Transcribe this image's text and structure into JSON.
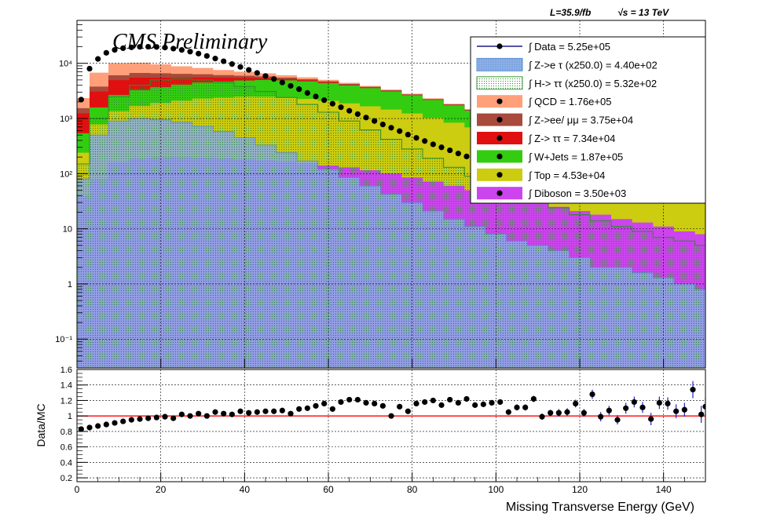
{
  "header": {
    "lumi_text": "L=35.9/fb",
    "energy_text": "√s = 13 TeV",
    "cms_label": "CMS Preliminary"
  },
  "legend": [
    {
      "text": "∫ Data = 5.25e+05",
      "style": "marker",
      "color": "#000000"
    },
    {
      "text": "∫ Z->e τ (x250.0) = 4.40e+02",
      "style": "hatch",
      "color": "#5b8fd6"
    },
    {
      "text": "∫ H-> ττ (x250.0) = 5.32e+02",
      "style": "hatch",
      "color": "#3a9a3a"
    },
    {
      "text": "∫ QCD = 1.76e+05",
      "style": "fill",
      "color": "#ffa07a"
    },
    {
      "text": "∫ Z->ee/ μμ = 3.75e+04",
      "style": "fill",
      "color": "#a84a3c"
    },
    {
      "text": "∫ Z-> ττ = 7.34e+04",
      "style": "fill",
      "color": "#e01010"
    },
    {
      "text": "∫ W+Jets = 1.87e+05",
      "style": "fill",
      "color": "#33cc11"
    },
    {
      "text": "∫ Top = 4.53e+04",
      "style": "fill",
      "color": "#cccc11"
    },
    {
      "text": "∫ Diboson = 3.50e+03",
      "style": "fill",
      "color": "#cc44ee"
    }
  ],
  "colors": {
    "data": "#000000",
    "qcd": "#ffa07a",
    "zee": "#a84a3c",
    "ztt": "#e01010",
    "wjets": "#33cc11",
    "top": "#cccc11",
    "diboson": "#cc44ee",
    "signal_ze": "#5b8fd6",
    "signal_htt": "#2e8b2e",
    "ratio_line": "#ff0000",
    "error_bar": "#2020cc"
  },
  "chart_data": [
    {
      "type": "area",
      "subtype": "stacked histogram",
      "yscale": "log",
      "xlim": [
        0,
        150
      ],
      "ylim": [
        0.03,
        60000
      ],
      "ytick_labels": [
        "10⁻¹",
        "1",
        "10",
        "10²",
        "10³",
        "10⁴"
      ],
      "ytick_values": [
        0.1,
        1,
        10,
        100,
        1000,
        10000
      ],
      "x": [
        1,
        5,
        10,
        15,
        20,
        25,
        30,
        35,
        40,
        45,
        50,
        55,
        60,
        65,
        70,
        75,
        80,
        85,
        90,
        95,
        100,
        105,
        110,
        115,
        120,
        125,
        130,
        135,
        140,
        145,
        150
      ],
      "stack": [
        {
          "name": "Diboson",
          "values": [
            40,
            80,
            160,
            190,
            200,
            200,
            195,
            190,
            180,
            175,
            165,
            155,
            140,
            130,
            115,
            100,
            85,
            72,
            60,
            50,
            42,
            35,
            30,
            25,
            21,
            18,
            15,
            13,
            11,
            9,
            8
          ]
        },
        {
          "name": "Top",
          "values": [
            200,
            700,
            1200,
            1500,
            1700,
            1900,
            2100,
            2200,
            2300,
            2300,
            2250,
            2100,
            1950,
            1750,
            1550,
            1350,
            1150,
            950,
            780,
            640,
            510,
            410,
            330,
            260,
            200,
            160,
            120,
            95,
            72,
            56,
            44
          ]
        },
        {
          "name": "W+Jets",
          "values": [
            300,
            800,
            1300,
            1600,
            1800,
            2000,
            2200,
            2300,
            2400,
            2500,
            2500,
            2450,
            2300,
            2100,
            1900,
            1650,
            1400,
            1150,
            900,
            700,
            520,
            390,
            290,
            210,
            150,
            110,
            80,
            58,
            42,
            30,
            22
          ]
        },
        {
          "name": "Z-> ττ",
          "values": [
            700,
            1500,
            2300,
            2200,
            1800,
            1400,
            1050,
            780,
            560,
            400,
            280,
            200,
            140,
            100,
            72,
            52,
            38,
            28,
            20,
            15,
            11,
            8,
            6,
            5,
            4,
            3,
            2,
            2,
            1,
            1,
            1
          ]
        },
        {
          "name": "Z->ee/ μμ",
          "values": [
            300,
            700,
            1100,
            1200,
            1100,
            950,
            800,
            650,
            520,
            410,
            320,
            250,
            190,
            150,
            115,
            90,
            70,
            54,
            42,
            33,
            26,
            20,
            16,
            13,
            10,
            8,
            6,
            5,
            4,
            3,
            3
          ]
        },
        {
          "name": "QCD",
          "values": [
            800,
            3000,
            4000,
            3600,
            3000,
            2400,
            1900,
            1450,
            1100,
            800,
            580,
            420,
            300,
            210,
            150,
            110,
            80,
            60,
            44,
            33,
            25,
            19,
            15,
            12,
            9,
            7,
            6,
            5,
            4,
            3,
            3
          ]
        }
      ],
      "signals": [
        {
          "name": "Z->e τ (x250.0)",
          "values": [
            80,
            500,
            900,
            1000,
            950,
            850,
            720,
            580,
            450,
            330,
            240,
            170,
            120,
            85,
            60,
            42,
            30,
            21,
            15,
            11,
            8,
            6,
            5,
            4,
            3,
            2,
            2,
            1.6,
            1.3,
            1,
            0.8
          ]
        },
        {
          "name": "H-> ττ (x250.0)",
          "values": [
            150,
            1000,
            2500,
            4000,
            5000,
            5200,
            5000,
            4500,
            3800,
            3100,
            2400,
            1800,
            1300,
            900,
            620,
            420,
            280,
            190,
            130,
            90,
            62,
            44,
            32,
            24,
            18,
            14,
            11,
            9,
            7,
            6,
            5
          ]
        }
      ],
      "data_points": {
        "x": [
          1,
          3,
          5,
          7,
          9,
          11,
          13,
          15,
          17,
          19,
          21,
          23,
          25,
          27,
          29,
          31,
          33,
          35,
          37,
          39,
          41,
          43,
          45,
          47,
          49,
          51,
          53,
          55,
          57,
          59,
          61,
          63,
          65,
          67,
          69,
          71,
          73,
          75,
          77,
          79,
          81,
          83,
          85,
          87,
          89,
          91,
          93,
          95,
          97,
          99,
          101,
          103,
          105,
          107,
          109
        ],
        "y": [
          2200,
          8000,
          12000,
          15500,
          17500,
          18800,
          19500,
          19900,
          20000,
          19800,
          19300,
          18500,
          17500,
          16300,
          15000,
          13600,
          12200,
          10900,
          9700,
          8600,
          7600,
          6700,
          5900,
          5200,
          4500,
          3900,
          3400,
          2900,
          2500,
          2150,
          1850,
          1600,
          1380,
          1200,
          1040,
          900,
          780,
          680,
          590,
          510,
          445,
          390,
          340,
          300,
          265,
          232,
          205,
          182,
          162,
          145,
          130,
          117,
          105,
          95,
          86
        ]
      },
      "xlabel": "",
      "ylabel": ""
    },
    {
      "type": "scatter",
      "ylabel": "Data/MC",
      "xlabel": "Missing Transverse Energy (GeV)",
      "xlim": [
        0,
        150
      ],
      "ylim": [
        0.15,
        1.6
      ],
      "ytick_labels": [
        "0.2",
        "0.4",
        "0.6",
        "0.8",
        "1",
        "1.2",
        "1.4",
        "1.6"
      ],
      "ytick_values": [
        0.2,
        0.4,
        0.6,
        0.8,
        1.0,
        1.2,
        1.4,
        1.6
      ],
      "xtick_labels": [
        "0",
        "20",
        "40",
        "60",
        "80",
        "100",
        "120",
        "140"
      ],
      "xtick_values": [
        0,
        20,
        40,
        60,
        80,
        100,
        120,
        140
      ],
      "reference_line": 1.0,
      "points": [
        {
          "x": 1,
          "y": 0.83,
          "err": 0.01
        },
        {
          "x": 3,
          "y": 0.85,
          "err": 0.01
        },
        {
          "x": 5,
          "y": 0.87,
          "err": 0.01
        },
        {
          "x": 7,
          "y": 0.89,
          "err": 0.01
        },
        {
          "x": 9,
          "y": 0.91,
          "err": 0.01
        },
        {
          "x": 11,
          "y": 0.93,
          "err": 0.01
        },
        {
          "x": 13,
          "y": 0.95,
          "err": 0.01
        },
        {
          "x": 15,
          "y": 0.96,
          "err": 0.01
        },
        {
          "x": 17,
          "y": 0.97,
          "err": 0.01
        },
        {
          "x": 19,
          "y": 0.98,
          "err": 0.01
        },
        {
          "x": 21,
          "y": 0.99,
          "err": 0.01
        },
        {
          "x": 23,
          "y": 0.97,
          "err": 0.01
        },
        {
          "x": 25,
          "y": 1.02,
          "err": 0.01
        },
        {
          "x": 27,
          "y": 1.0,
          "err": 0.01
        },
        {
          "x": 29,
          "y": 1.03,
          "err": 0.01
        },
        {
          "x": 31,
          "y": 1.0,
          "err": 0.01
        },
        {
          "x": 33,
          "y": 1.05,
          "err": 0.01
        },
        {
          "x": 35,
          "y": 1.03,
          "err": 0.01
        },
        {
          "x": 37,
          "y": 1.02,
          "err": 0.01
        },
        {
          "x": 39,
          "y": 1.06,
          "err": 0.01
        },
        {
          "x": 41,
          "y": 1.04,
          "err": 0.01
        },
        {
          "x": 43,
          "y": 1.05,
          "err": 0.01
        },
        {
          "x": 45,
          "y": 1.06,
          "err": 0.01
        },
        {
          "x": 47,
          "y": 1.06,
          "err": 0.01
        },
        {
          "x": 49,
          "y": 1.07,
          "err": 0.01
        },
        {
          "x": 51,
          "y": 1.03,
          "err": 0.01
        },
        {
          "x": 53,
          "y": 1.09,
          "err": 0.01
        },
        {
          "x": 55,
          "y": 1.1,
          "err": 0.01
        },
        {
          "x": 57,
          "y": 1.13,
          "err": 0.02
        },
        {
          "x": 59,
          "y": 1.16,
          "err": 0.02
        },
        {
          "x": 61,
          "y": 1.09,
          "err": 0.02
        },
        {
          "x": 63,
          "y": 1.18,
          "err": 0.02
        },
        {
          "x": 65,
          "y": 1.21,
          "err": 0.02
        },
        {
          "x": 67,
          "y": 1.21,
          "err": 0.02
        },
        {
          "x": 69,
          "y": 1.17,
          "err": 0.02
        },
        {
          "x": 71,
          "y": 1.16,
          "err": 0.02
        },
        {
          "x": 73,
          "y": 1.13,
          "err": 0.02
        },
        {
          "x": 75,
          "y": 1.0,
          "err": 0.02
        },
        {
          "x": 77,
          "y": 1.12,
          "err": 0.02
        },
        {
          "x": 79,
          "y": 1.06,
          "err": 0.02
        },
        {
          "x": 81,
          "y": 1.16,
          "err": 0.02
        },
        {
          "x": 83,
          "y": 1.18,
          "err": 0.02
        },
        {
          "x": 85,
          "y": 1.2,
          "err": 0.02
        },
        {
          "x": 87,
          "y": 1.14,
          "err": 0.02
        },
        {
          "x": 89,
          "y": 1.21,
          "err": 0.02
        },
        {
          "x": 91,
          "y": 1.17,
          "err": 0.03
        },
        {
          "x": 93,
          "y": 1.22,
          "err": 0.03
        },
        {
          "x": 95,
          "y": 1.14,
          "err": 0.03
        },
        {
          "x": 97,
          "y": 1.15,
          "err": 0.03
        },
        {
          "x": 99,
          "y": 1.17,
          "err": 0.03
        },
        {
          "x": 101,
          "y": 1.18,
          "err": 0.03
        },
        {
          "x": 103,
          "y": 1.05,
          "err": 0.03
        },
        {
          "x": 105,
          "y": 1.11,
          "err": 0.04
        },
        {
          "x": 107,
          "y": 1.11,
          "err": 0.04
        },
        {
          "x": 109,
          "y": 1.22,
          "err": 0.04
        },
        {
          "x": 111,
          "y": 0.99,
          "err": 0.04
        },
        {
          "x": 113,
          "y": 1.04,
          "err": 0.04
        },
        {
          "x": 115,
          "y": 1.04,
          "err": 0.05
        },
        {
          "x": 117,
          "y": 1.05,
          "err": 0.05
        },
        {
          "x": 119,
          "y": 1.16,
          "err": 0.05
        },
        {
          "x": 121,
          "y": 1.04,
          "err": 0.05
        },
        {
          "x": 123,
          "y": 1.28,
          "err": 0.06
        },
        {
          "x": 125,
          "y": 0.99,
          "err": 0.06
        },
        {
          "x": 127,
          "y": 1.07,
          "err": 0.06
        },
        {
          "x": 129,
          "y": 0.95,
          "err": 0.06
        },
        {
          "x": 131,
          "y": 1.1,
          "err": 0.07
        },
        {
          "x": 133,
          "y": 1.18,
          "err": 0.07
        },
        {
          "x": 135,
          "y": 1.11,
          "err": 0.07
        },
        {
          "x": 137,
          "y": 0.96,
          "err": 0.08
        },
        {
          "x": 139,
          "y": 1.17,
          "err": 0.08
        },
        {
          "x": 141,
          "y": 1.16,
          "err": 0.08
        },
        {
          "x": 143,
          "y": 1.06,
          "err": 0.09
        },
        {
          "x": 145,
          "y": 1.08,
          "err": 0.09
        },
        {
          "x": 147,
          "y": 1.34,
          "err": 0.11
        },
        {
          "x": 149,
          "y": 1.02,
          "err": 0.11
        },
        {
          "x": 150,
          "y": 1.12,
          "err": 0.12
        }
      ]
    }
  ]
}
